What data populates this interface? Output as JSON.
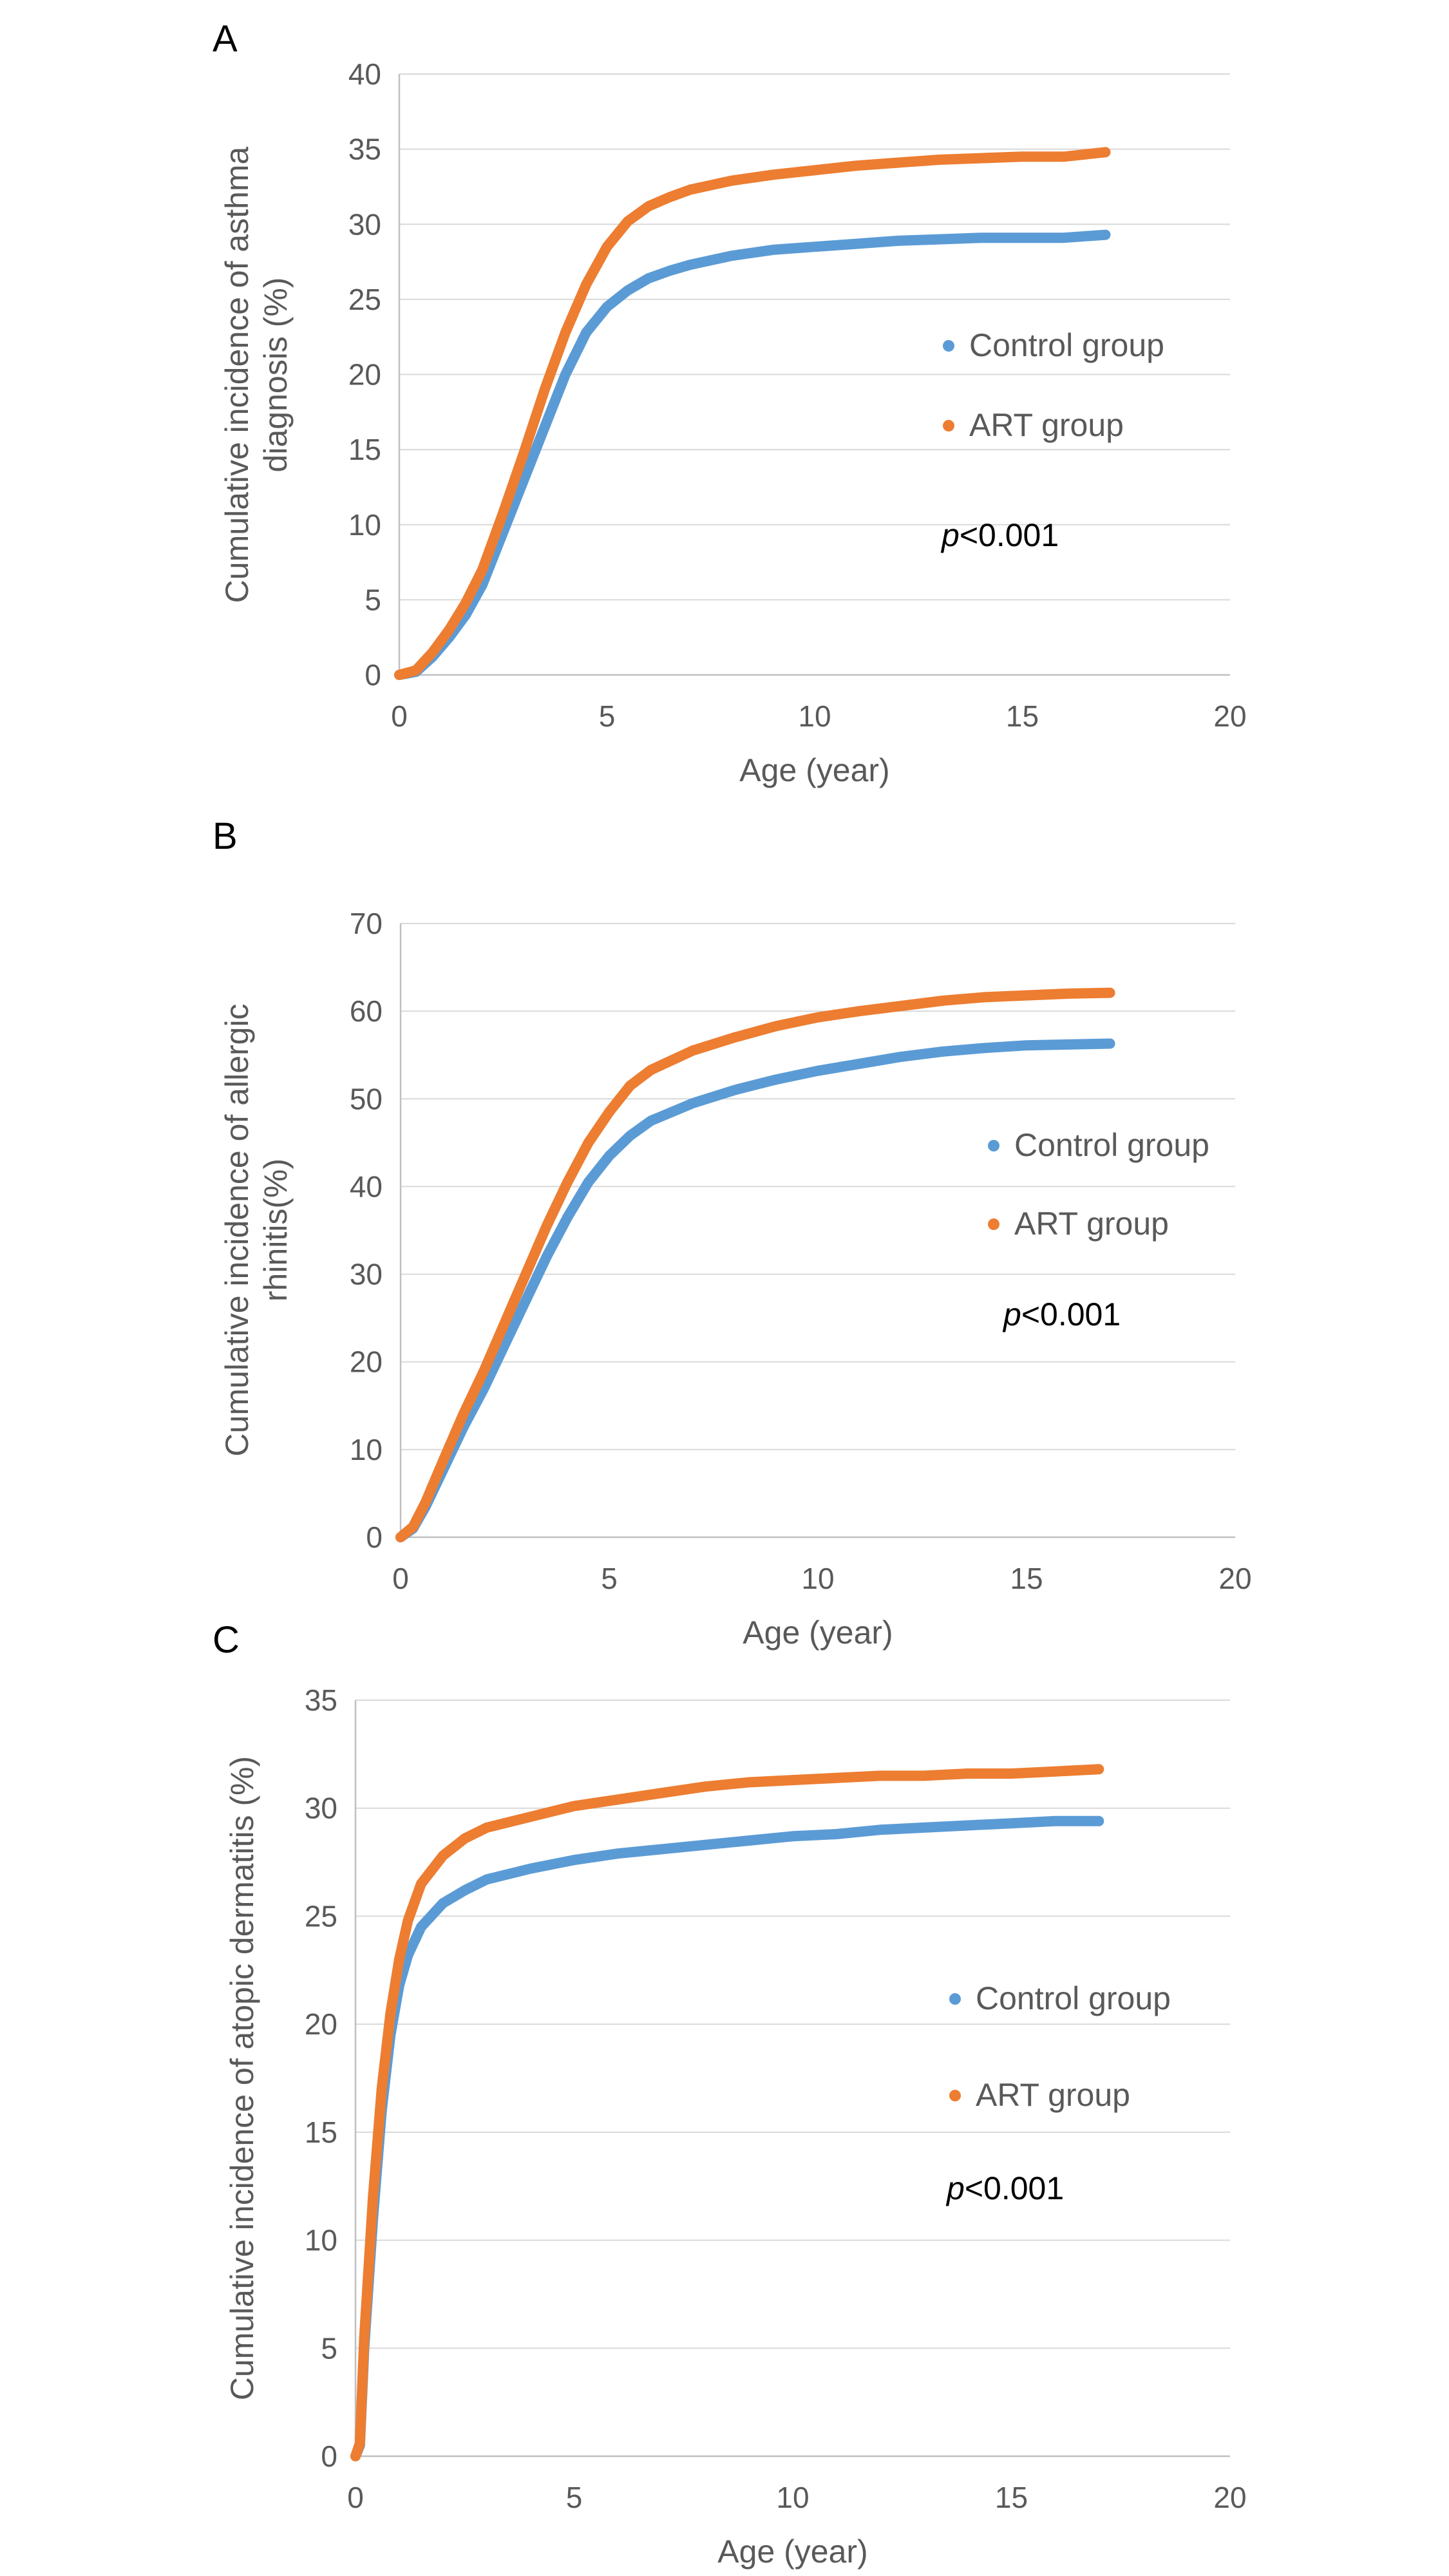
{
  "chart_data": [
    {
      "panel": "A",
      "type": "line",
      "xlabel": "Age (year)",
      "ylabel": [
        "Cumulative incidence of asthma",
        "diagnosis (%)"
      ],
      "xlim": [
        0,
        20
      ],
      "ylim": [
        0,
        40
      ],
      "xticks": [
        0,
        5,
        10,
        15,
        20
      ],
      "yticks": [
        0,
        5,
        10,
        15,
        20,
        25,
        30,
        35,
        40
      ],
      "grid": "horizontal",
      "legend_position": "right",
      "annotation": {
        "italic": "p",
        "text": "<0.001"
      },
      "series": [
        {
          "name": "Control group",
          "color": "#5b9bd5",
          "x": [
            0,
            0.4,
            0.8,
            1.2,
            1.6,
            2.0,
            2.5,
            3.0,
            3.5,
            4.0,
            4.5,
            5.0,
            5.5,
            6.0,
            6.5,
            7.0,
            8.0,
            9.0,
            10.0,
            11.0,
            12.0,
            13.0,
            14.0,
            15.0,
            16.0,
            17.0
          ],
          "y": [
            0,
            0.2,
            1.2,
            2.5,
            4.0,
            6.0,
            9.5,
            13.0,
            16.5,
            20.0,
            22.8,
            24.5,
            25.6,
            26.4,
            26.9,
            27.3,
            27.9,
            28.3,
            28.5,
            28.7,
            28.9,
            29.0,
            29.1,
            29.1,
            29.1,
            29.3
          ]
        },
        {
          "name": "ART group",
          "color": "#ed7d31",
          "x": [
            0,
            0.4,
            0.8,
            1.2,
            1.6,
            2.0,
            2.5,
            3.0,
            3.5,
            4.0,
            4.5,
            5.0,
            5.5,
            6.0,
            6.5,
            7.0,
            8.0,
            9.0,
            10.0,
            11.0,
            12.0,
            13.0,
            14.0,
            15.0,
            16.0,
            17.0
          ],
          "y": [
            0,
            0.3,
            1.5,
            3.0,
            4.8,
            7.0,
            10.8,
            14.8,
            19.0,
            22.8,
            26.0,
            28.5,
            30.2,
            31.2,
            31.8,
            32.3,
            32.9,
            33.3,
            33.6,
            33.9,
            34.1,
            34.3,
            34.4,
            34.5,
            34.5,
            34.8
          ]
        }
      ]
    },
    {
      "panel": "B",
      "type": "line",
      "xlabel": "Age (year)",
      "ylabel": [
        "Cumulative incidence of allergic",
        "rhinitis(%)"
      ],
      "xlim": [
        0,
        20
      ],
      "ylim": [
        0,
        70
      ],
      "xticks": [
        0,
        5,
        10,
        15,
        20
      ],
      "yticks": [
        0,
        10,
        20,
        30,
        40,
        50,
        60,
        70
      ],
      "grid": "horizontal",
      "legend_position": "right",
      "annotation": {
        "italic": "p",
        "text": "<0.001"
      },
      "series": [
        {
          "name": "Control group",
          "color": "#5b9bd5",
          "x": [
            0,
            0.3,
            0.6,
            1.0,
            1.5,
            2.0,
            2.5,
            3.0,
            3.5,
            4.0,
            4.5,
            5.0,
            5.5,
            6.0,
            7.0,
            8.0,
            9.0,
            10.0,
            11.0,
            12.0,
            13.0,
            14.0,
            15.0,
            16.0,
            17.0
          ],
          "y": [
            0,
            1.0,
            3.5,
            7.5,
            12.5,
            17.0,
            22.0,
            27.0,
            32.0,
            36.5,
            40.5,
            43.5,
            45.8,
            47.5,
            49.5,
            51.0,
            52.2,
            53.2,
            54.0,
            54.8,
            55.4,
            55.8,
            56.1,
            56.2,
            56.3
          ]
        },
        {
          "name": "ART group",
          "color": "#ed7d31",
          "x": [
            0,
            0.3,
            0.6,
            1.0,
            1.5,
            2.0,
            2.5,
            3.0,
            3.5,
            4.0,
            4.5,
            5.0,
            5.5,
            6.0,
            7.0,
            8.0,
            9.0,
            10.0,
            11.0,
            12.0,
            13.0,
            14.0,
            15.0,
            16.0,
            17.0
          ],
          "y": [
            0,
            1.2,
            4.0,
            8.5,
            14.0,
            19.0,
            24.5,
            30.0,
            35.5,
            40.5,
            45.0,
            48.5,
            51.5,
            53.3,
            55.5,
            57.0,
            58.3,
            59.3,
            60.0,
            60.6,
            61.2,
            61.6,
            61.8,
            62.0,
            62.1
          ]
        }
      ]
    },
    {
      "panel": "C",
      "type": "line",
      "xlabel": "Age (year)",
      "ylabel": [
        "Cumulative incidence of atopic dermatitis (%)"
      ],
      "xlim": [
        0,
        20
      ],
      "ylim": [
        0,
        35
      ],
      "xticks": [
        0,
        5,
        10,
        15,
        20
      ],
      "yticks": [
        0,
        5,
        10,
        15,
        20,
        25,
        30,
        35
      ],
      "grid": "horizontal",
      "legend_position": "right",
      "annotation": {
        "italic": "p",
        "text": "<0.001"
      },
      "series": [
        {
          "name": "Control group",
          "color": "#5b9bd5",
          "x": [
            0,
            0.1,
            0.2,
            0.4,
            0.6,
            0.8,
            1.0,
            1.2,
            1.5,
            2.0,
            2.5,
            3.0,
            4.0,
            5.0,
            6.0,
            7.0,
            8.0,
            9.0,
            10.0,
            11.0,
            12.0,
            13.0,
            14.0,
            15.0,
            16.0,
            17.0
          ],
          "y": [
            0,
            0.5,
            5.0,
            11.0,
            16.0,
            19.5,
            21.8,
            23.2,
            24.5,
            25.6,
            26.2,
            26.7,
            27.2,
            27.6,
            27.9,
            28.1,
            28.3,
            28.5,
            28.7,
            28.8,
            29.0,
            29.1,
            29.2,
            29.3,
            29.4,
            29.4
          ]
        },
        {
          "name": "ART group",
          "color": "#ed7d31",
          "x": [
            0,
            0.1,
            0.2,
            0.4,
            0.6,
            0.8,
            1.0,
            1.2,
            1.5,
            2.0,
            2.5,
            3.0,
            4.0,
            5.0,
            6.0,
            7.0,
            8.0,
            9.0,
            10.0,
            11.0,
            12.0,
            13.0,
            14.0,
            15.0,
            16.0,
            17.0
          ],
          "y": [
            0,
            0.6,
            5.5,
            12.0,
            17.0,
            20.5,
            23.0,
            24.8,
            26.5,
            27.8,
            28.6,
            29.1,
            29.6,
            30.1,
            30.4,
            30.7,
            31.0,
            31.2,
            31.3,
            31.4,
            31.5,
            31.5,
            31.6,
            31.6,
            31.7,
            31.8
          ]
        }
      ]
    }
  ]
}
